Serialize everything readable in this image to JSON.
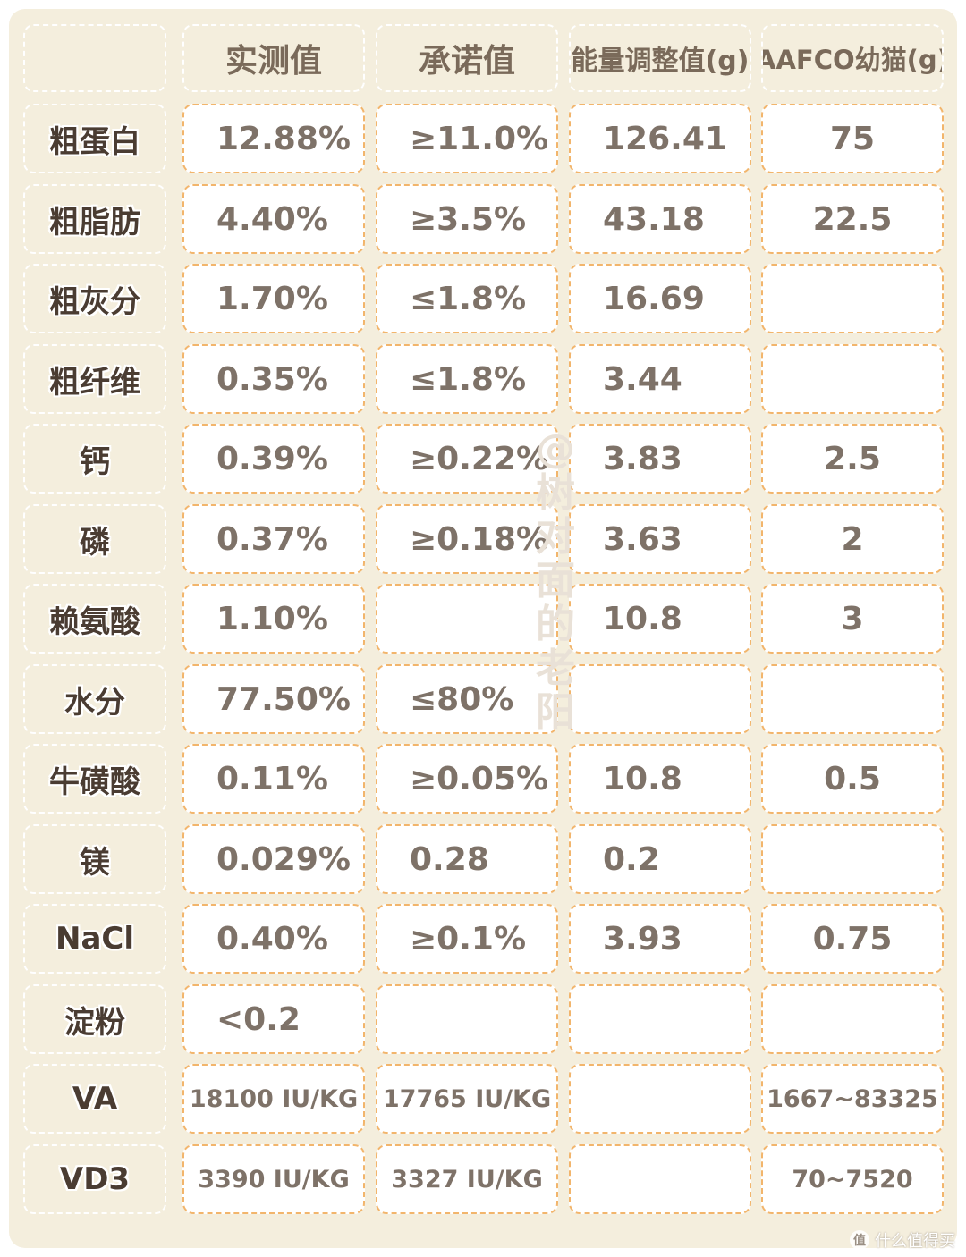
{
  "table": {
    "headers": [
      "",
      "实测值",
      "承诺值",
      "能量调整值(g)",
      "AAFCO幼猫(g)"
    ],
    "rows": [
      {
        "label": "粗蛋白",
        "cells": [
          "12.88%",
          "≥11.0%",
          "126.41",
          "75"
        ]
      },
      {
        "label": "粗脂肪",
        "cells": [
          "4.40%",
          "≥3.5%",
          "43.18",
          "22.5"
        ]
      },
      {
        "label": "粗灰分",
        "cells": [
          "1.70%",
          "≤1.8%",
          "16.69",
          ""
        ]
      },
      {
        "label": "粗纤维",
        "cells": [
          "0.35%",
          "≤1.8%",
          "3.44",
          ""
        ]
      },
      {
        "label": "钙",
        "cells": [
          "0.39%",
          "≥0.22%",
          "3.83",
          "2.5"
        ]
      },
      {
        "label": "磷",
        "cells": [
          "0.37%",
          "≥0.18%",
          "3.63",
          "2"
        ]
      },
      {
        "label": "赖氨酸",
        "cells": [
          "1.10%",
          "",
          "10.8",
          "3"
        ]
      },
      {
        "label": "水分",
        "cells": [
          "77.50%",
          "≤80%",
          "",
          ""
        ]
      },
      {
        "label": "牛磺酸",
        "cells": [
          "0.11%",
          "≥0.05%",
          "10.8",
          "0.5"
        ]
      },
      {
        "label": "镁",
        "cells": [
          "0.029%",
          "0.28",
          "0.2",
          ""
        ]
      },
      {
        "label": "NaCl",
        "cells": [
          "0.40%",
          "≥0.1%",
          "3.93",
          "0.75"
        ]
      },
      {
        "label": "淀粉",
        "cells": [
          "<0.2",
          "",
          "",
          ""
        ]
      },
      {
        "label": "VA",
        "cells": [
          "18100 IU/KG",
          "17765 IU/KG",
          "",
          "1667~83325"
        ]
      },
      {
        "label": "VD3",
        "cells": [
          "3390 IU/KG",
          "3327 IU/KG",
          "",
          "70~7520"
        ]
      }
    ]
  },
  "watermark": "@树对面的老阳",
  "footer_logo": {
    "badge": "值",
    "text": "什么值得买"
  },
  "colors": {
    "panel_bg": "#f4eedd",
    "cell_bg": "#ffffff",
    "cell_border": "#f2b56c",
    "data_text": "#7e7268",
    "label_text": "#4a3c32",
    "header_text": "#7a6a5a",
    "watermark": "#e9e1d7"
  }
}
